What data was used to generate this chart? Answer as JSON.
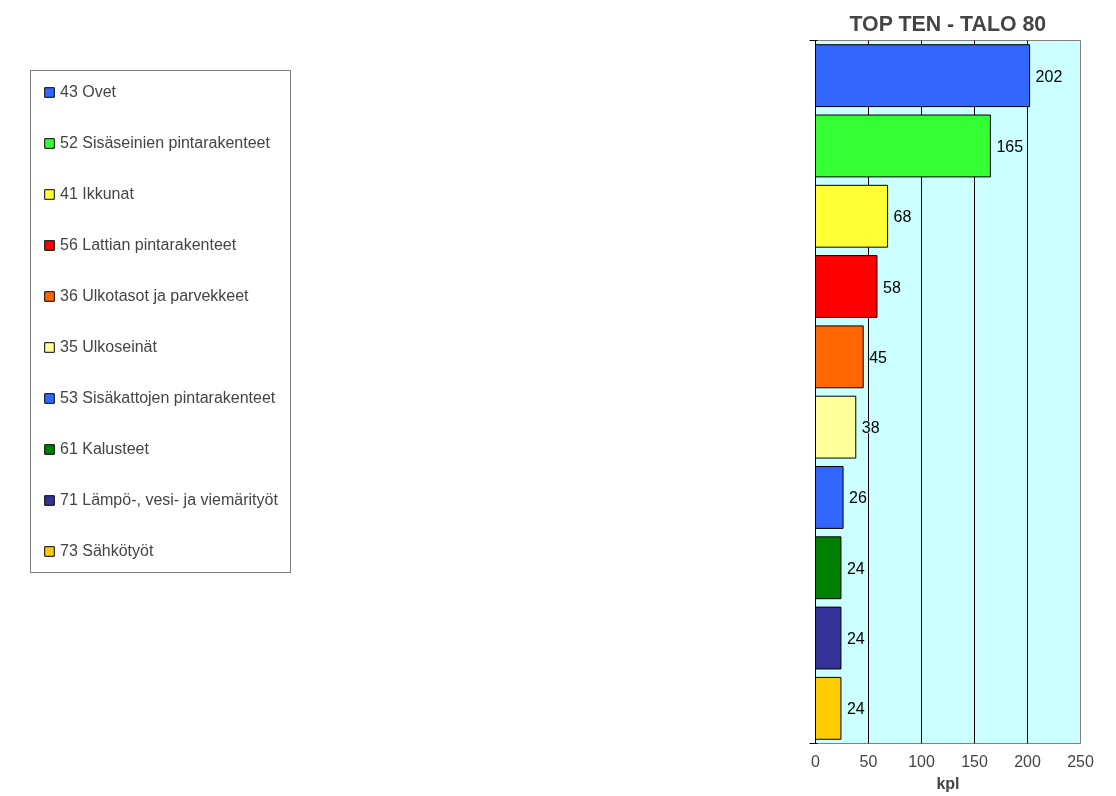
{
  "chart_data": {
    "type": "bar",
    "orientation": "horizontal",
    "title": "TOP TEN - TALO 80",
    "xlabel": "kpl",
    "categories": [
      null,
      null,
      null,
      null,
      null,
      null,
      null,
      null,
      null,
      null
    ],
    "series": [
      {
        "name": "43 Ovet",
        "color": "#3366ff",
        "values": [
          202,
          null,
          null,
          null,
          null,
          null,
          null,
          null,
          null,
          null
        ]
      },
      {
        "name": "52 Sisäseinien pintarakenteet",
        "color": "#33ff33",
        "values": [
          null,
          165,
          null,
          null,
          null,
          null,
          null,
          null,
          null,
          null
        ]
      },
      {
        "name": "41 Ikkunat",
        "color": "#ffff33",
        "values": [
          null,
          null,
          68,
          null,
          null,
          null,
          null,
          null,
          null,
          null
        ]
      },
      {
        "name": "56 Lattian pintarakenteet",
        "color": "#ff0000",
        "values": [
          null,
          null,
          null,
          58,
          null,
          null,
          null,
          null,
          null,
          null
        ]
      },
      {
        "name": "36 Ulkotasot ja parvekkeet",
        "color": "#ff6600",
        "values": [
          null,
          null,
          null,
          null,
          45,
          null,
          null,
          null,
          null,
          null
        ]
      },
      {
        "name": "35 Ulkoseinät",
        "color": "#ffff99",
        "values": [
          null,
          null,
          null,
          null,
          null,
          38,
          null,
          null,
          null,
          null
        ]
      },
      {
        "name": "53 Sisäkattojen pintarakenteet",
        "color": "#3366ff",
        "values": [
          null,
          null,
          null,
          null,
          null,
          null,
          26,
          null,
          null,
          null
        ]
      },
      {
        "name": "61 Kalusteet",
        "color": "#008000",
        "values": [
          null,
          null,
          null,
          null,
          null,
          null,
          null,
          24,
          null,
          null
        ]
      },
      {
        "name": "71 Lämpö-, vesi- ja viemärityöt",
        "color": "#333399",
        "values": [
          null,
          null,
          null,
          null,
          null,
          null,
          null,
          null,
          24,
          null
        ]
      },
      {
        "name": "73 Sähkötyöt",
        "color": "#ffcc00",
        "values": [
          null,
          null,
          null,
          null,
          null,
          null,
          null,
          null,
          null,
          24
        ]
      }
    ],
    "xlim": [
      0,
      250
    ],
    "xticks": [
      0,
      50,
      100,
      150,
      200,
      250
    ],
    "grid": "x",
    "legend": "left",
    "data_labels": true,
    "tick_labels": "x"
  }
}
